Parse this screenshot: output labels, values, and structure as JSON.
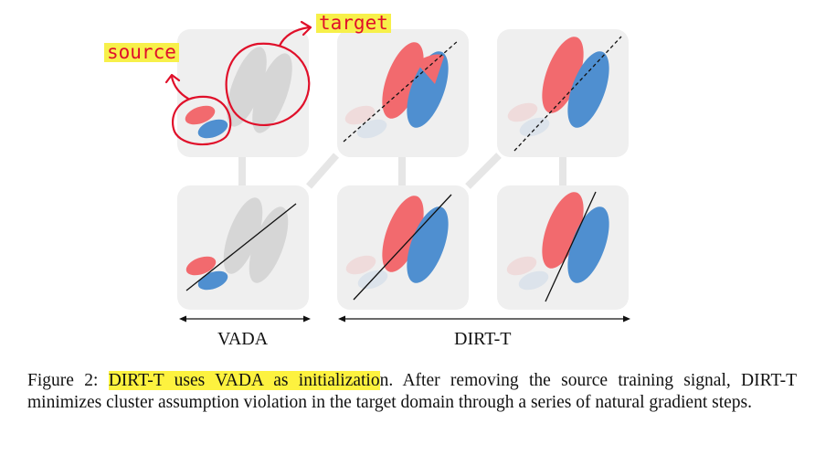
{
  "annotations": {
    "source_label": "source",
    "target_label": "target"
  },
  "figure": {
    "labels": {
      "left": "VADA",
      "right": "DIRT-T"
    },
    "colors": {
      "source_red": "#f26a6e",
      "target_blue": "#4f8fd0",
      "gray": "#d6d6d6",
      "panel_bg": "#efefef",
      "annotation_red": "#e0102a",
      "highlight": "#f7f04a"
    }
  },
  "caption": {
    "prefix": "Figure 2: ",
    "highlighted": "DIRT-T uses VADA as initializatio",
    "rest": "n.  After removing the source training signal, DIRT-T minimizes cluster assumption violation in the target domain through a series of natural gradient steps."
  }
}
